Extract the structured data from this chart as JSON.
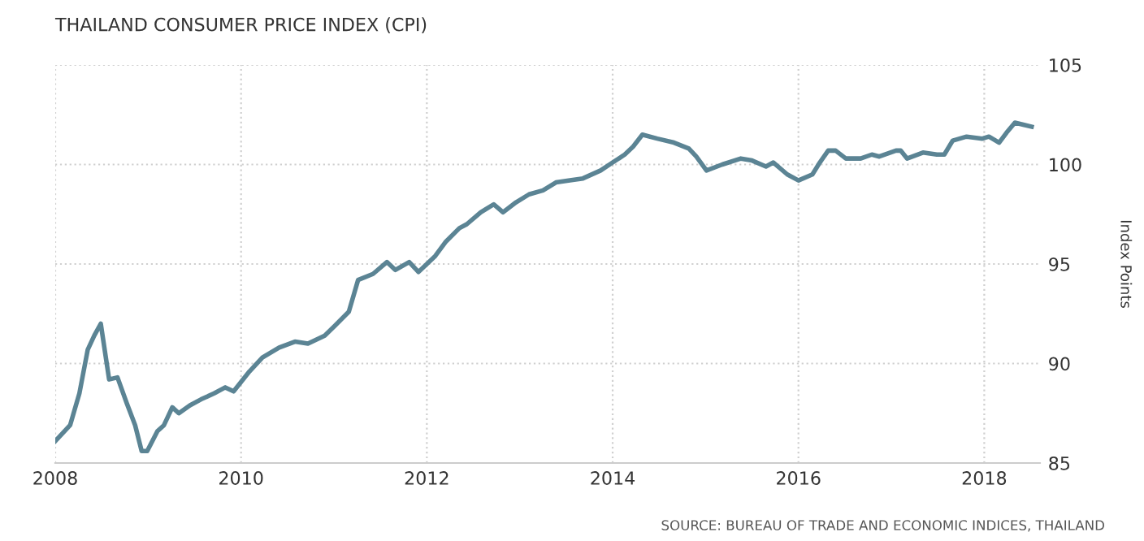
{
  "chart_data": {
    "type": "line",
    "title": "THAILAND CONSUMER PRICE INDEX (CPI)",
    "ylabel": "Index Points",
    "annotations": [
      "SOURCE: BUREAU OF TRADE AND ECONOMIC INDICES, THAILAND"
    ],
    "x": [
      2008.0,
      2008.16,
      2008.26,
      2008.35,
      2008.42,
      2008.49,
      2008.58,
      2008.67,
      2008.77,
      2008.86,
      2008.93,
      2008.99,
      2009.1,
      2009.17,
      2009.26,
      2009.33,
      2009.45,
      2009.57,
      2009.71,
      2009.83,
      2009.92,
      2010.09,
      2010.23,
      2010.41,
      2010.58,
      2010.72,
      2010.9,
      2011.01,
      2011.16,
      2011.26,
      2011.42,
      2011.57,
      2011.66,
      2011.81,
      2011.91,
      2012.09,
      2012.2,
      2012.35,
      2012.43,
      2012.58,
      2012.72,
      2012.82,
      2012.96,
      2013.1,
      2013.25,
      2013.39,
      2013.54,
      2013.68,
      2013.87,
      2014.0,
      2014.13,
      2014.22,
      2014.32,
      2014.48,
      2014.66,
      2014.82,
      2014.9,
      2015.01,
      2015.18,
      2015.38,
      2015.5,
      2015.65,
      2015.73,
      2015.88,
      2016.0,
      2016.15,
      2016.23,
      2016.32,
      2016.4,
      2016.51,
      2016.67,
      2016.79,
      2016.87,
      2017.05,
      2017.1,
      2017.17,
      2017.34,
      2017.49,
      2017.57,
      2017.66,
      2017.81,
      2017.98,
      2018.05,
      2018.16,
      2018.24,
      2018.33,
      2018.42,
      2018.51
    ],
    "series": [
      {
        "color": "#5b8494",
        "values": [
          86.1,
          86.9,
          88.5,
          90.7,
          91.4,
          92.0,
          89.2,
          89.3,
          88.0,
          86.9,
          85.6,
          85.6,
          86.6,
          86.9,
          87.8,
          87.5,
          87.9,
          88.2,
          88.5,
          88.8,
          88.6,
          89.6,
          90.3,
          90.8,
          91.1,
          91.0,
          91.4,
          91.9,
          92.6,
          94.2,
          94.5,
          95.1,
          94.7,
          95.1,
          94.6,
          95.4,
          96.1,
          96.8,
          97.0,
          97.6,
          98.0,
          97.6,
          98.1,
          98.5,
          98.7,
          99.1,
          99.2,
          99.3,
          99.7,
          100.1,
          100.5,
          100.9,
          101.5,
          101.3,
          101.1,
          100.8,
          100.4,
          99.7,
          100.0,
          100.3,
          100.2,
          99.9,
          100.1,
          99.5,
          99.2,
          99.5,
          100.1,
          100.7,
          100.7,
          100.3,
          100.3,
          100.5,
          100.4,
          100.7,
          100.7,
          100.3,
          100.6,
          100.5,
          100.5,
          101.2,
          101.4,
          101.3,
          101.4,
          101.1,
          101.6,
          102.1,
          102.0,
          101.9
        ]
      }
    ],
    "xlim": [
      2008,
      2018.6
    ],
    "ylim": [
      85,
      105
    ],
    "xticks": [
      2008,
      2010,
      2012,
      2014,
      2016,
      2018
    ],
    "yticks": [
      85,
      90,
      95,
      100,
      105
    ],
    "grid": true,
    "legend": false
  }
}
